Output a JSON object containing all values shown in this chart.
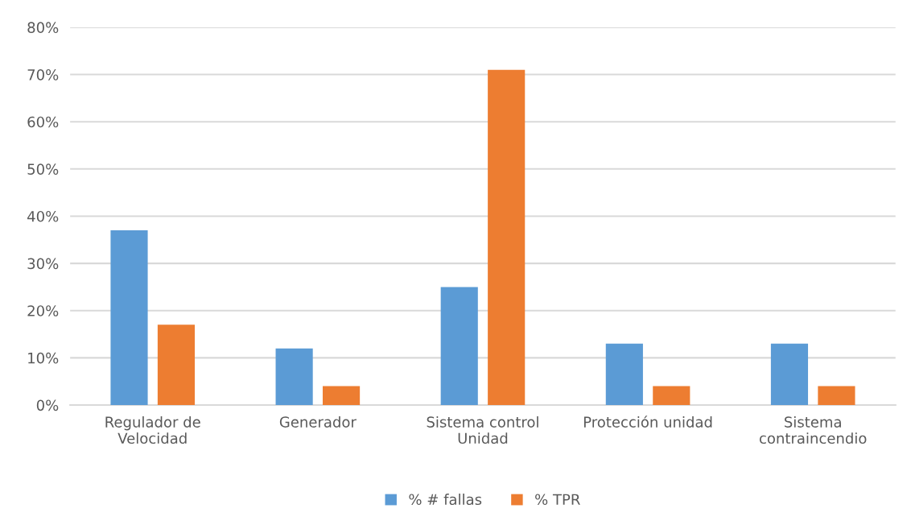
{
  "chart_data": {
    "type": "bar",
    "categories": [
      "Regulador de\nVelocidad",
      "Generador",
      "Sistema control\nUnidad",
      "Protección unidad",
      "Sistema\ncontraincendio"
    ],
    "series": [
      {
        "name": "% # fallas",
        "color": "#5b9bd5",
        "values": [
          37,
          12,
          25,
          13,
          13
        ]
      },
      {
        "name": "% TPR",
        "color": "#ed7d31",
        "values": [
          17,
          4,
          71,
          4,
          4
        ]
      }
    ],
    "ylim": [
      0,
      80
    ],
    "yticks": [
      {
        "value": 0,
        "label": "0%"
      },
      {
        "value": 10,
        "label": "10%"
      },
      {
        "value": 20,
        "label": "20%"
      },
      {
        "value": 30,
        "label": "30%"
      },
      {
        "value": 40,
        "label": "40%"
      },
      {
        "value": 50,
        "label": "50%"
      },
      {
        "value": 60,
        "label": "60%"
      },
      {
        "value": 70,
        "label": "70%"
      },
      {
        "value": 80,
        "label": "80%"
      }
    ],
    "grid": "y",
    "legend": "bottom"
  }
}
